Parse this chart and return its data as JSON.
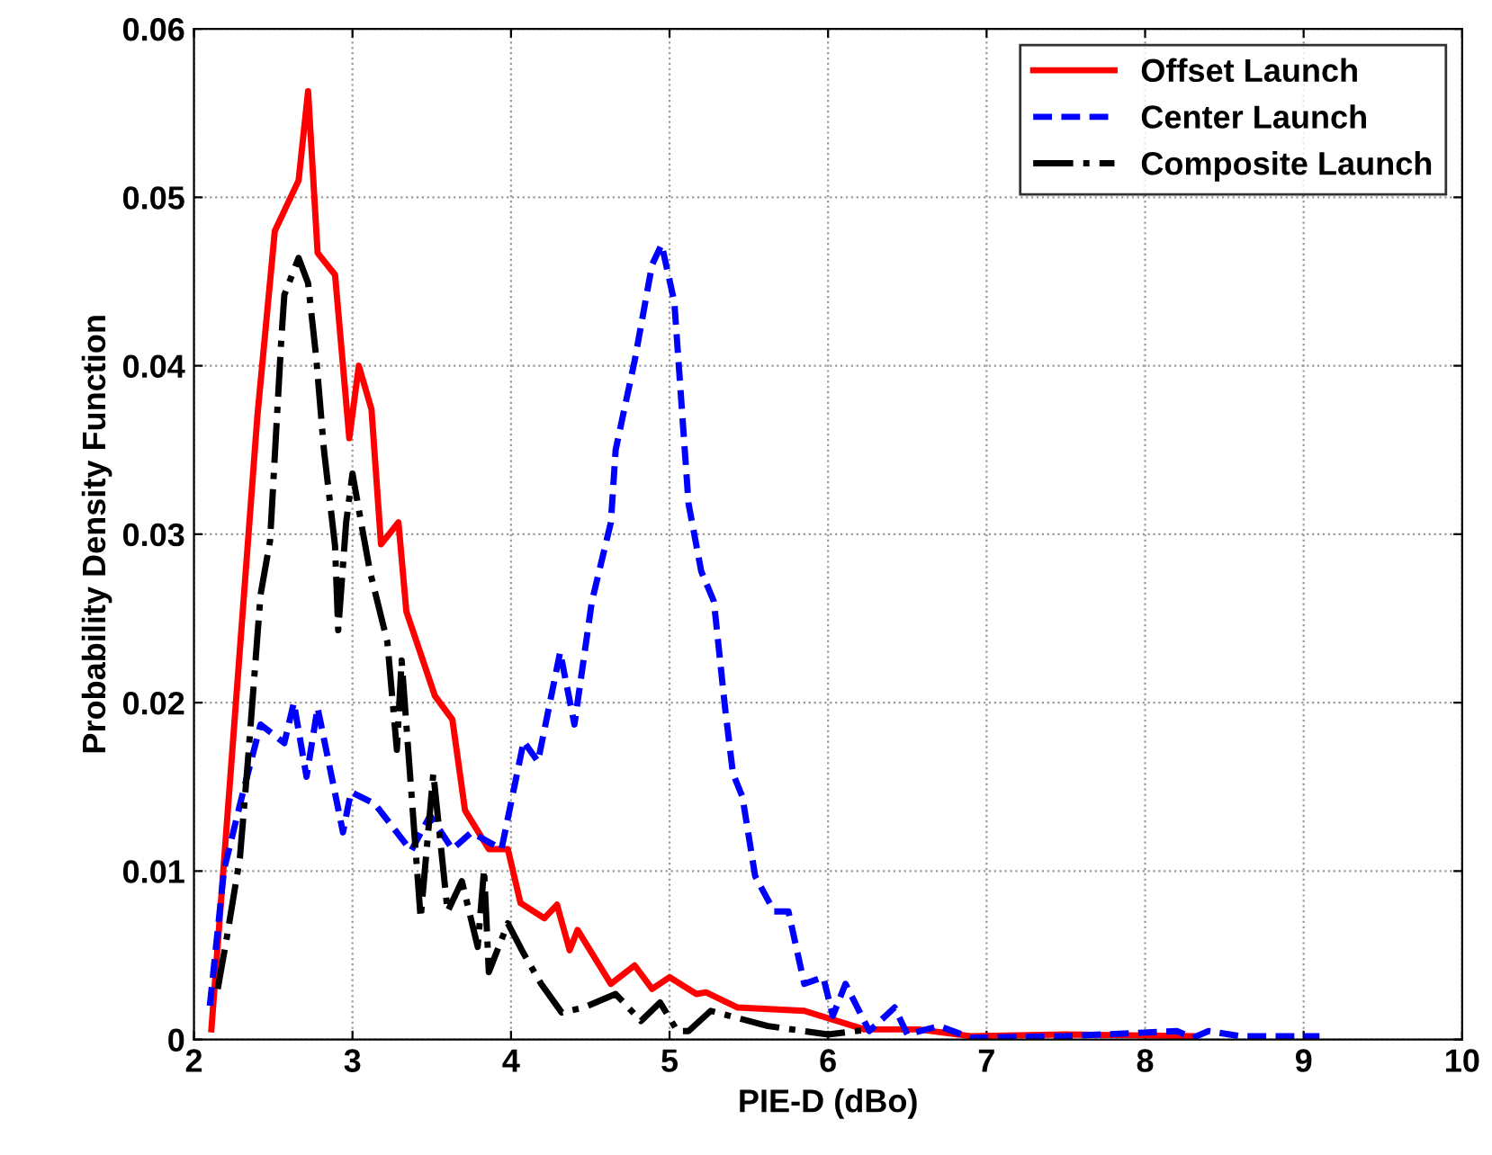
{
  "chart_data": {
    "type": "line",
    "xlabel": "PIE-D (dBo)",
    "ylabel": "Probability Density Function",
    "xlim": [
      2,
      10
    ],
    "ylim": [
      0,
      0.06
    ],
    "xticks": [
      2,
      3,
      4,
      5,
      6,
      7,
      8,
      9,
      10
    ],
    "yticks": [
      0,
      0.01,
      0.02,
      0.03,
      0.04,
      0.05,
      0.06
    ],
    "grid": true,
    "legend": "top right",
    "marker": "none",
    "series": [
      {
        "name": "Offset Launch",
        "color": "#ff0000",
        "line_style": "solid",
        "x": [
          2.11,
          2.4,
          2.51,
          2.66,
          2.72,
          2.78,
          2.89,
          2.98,
          3.04,
          3.12,
          3.18,
          3.29,
          3.34,
          3.52,
          3.63,
          3.71,
          3.86,
          3.98,
          4.06,
          4.21,
          4.29,
          4.37,
          4.42,
          4.63,
          4.78,
          4.89,
          5.0,
          5.17,
          5.23,
          5.43,
          5.85,
          6.23,
          6.57,
          6.9,
          7.5,
          8.3
        ],
        "values": [
          0.0006,
          0.037,
          0.048,
          0.051,
          0.0563,
          0.0467,
          0.0454,
          0.0357,
          0.04,
          0.0374,
          0.0294,
          0.0307,
          0.0254,
          0.0204,
          0.019,
          0.0136,
          0.0113,
          0.0113,
          0.0081,
          0.0072,
          0.008,
          0.0053,
          0.0065,
          0.0033,
          0.0044,
          0.003,
          0.0037,
          0.0027,
          0.0028,
          0.0019,
          0.0017,
          0.0006,
          0.0006,
          0.0002,
          0.0003,
          0.0002
        ]
      },
      {
        "name": "Center Launch",
        "color": "#0000ff",
        "line_style": "dashed",
        "x": [
          2.1,
          2.19,
          2.31,
          2.42,
          2.57,
          2.63,
          2.71,
          2.78,
          2.94,
          2.99,
          3.14,
          3.37,
          3.49,
          3.63,
          3.75,
          3.94,
          4.08,
          4.17,
          4.31,
          4.4,
          4.51,
          4.63,
          4.66,
          4.78,
          4.89,
          4.95,
          5.03,
          5.12,
          5.2,
          5.28,
          5.35,
          5.4,
          5.46,
          5.54,
          5.66,
          5.75,
          5.85,
          5.97,
          6.03,
          6.11,
          6.26,
          6.42,
          6.5,
          6.7,
          6.9,
          7.5,
          8.2,
          8.3,
          8.4,
          8.6,
          9.1
        ],
        "values": [
          0.002,
          0.0101,
          0.0147,
          0.0187,
          0.0176,
          0.02,
          0.0156,
          0.0197,
          0.0123,
          0.0147,
          0.014,
          0.0112,
          0.0133,
          0.0113,
          0.0123,
          0.0113,
          0.0177,
          0.0165,
          0.023,
          0.0187,
          0.026,
          0.0307,
          0.035,
          0.0403,
          0.046,
          0.0472,
          0.0438,
          0.0318,
          0.0278,
          0.026,
          0.0197,
          0.0158,
          0.0144,
          0.0097,
          0.0076,
          0.0076,
          0.0033,
          0.0037,
          0.0014,
          0.0033,
          0.0005,
          0.0019,
          0.0003,
          0.0008,
          0.0001,
          0.0002,
          0.0005,
          0.0001,
          0.0005,
          0.0002,
          0.0002
        ]
      },
      {
        "name": "Composite Launch",
        "color": "#000000",
        "line_style": "dashdot",
        "x": [
          2.15,
          2.21,
          2.29,
          2.34,
          2.42,
          2.48,
          2.55,
          2.57,
          2.66,
          2.72,
          2.77,
          2.82,
          2.89,
          2.91,
          2.96,
          3.0,
          3.06,
          3.11,
          3.22,
          3.28,
          3.31,
          3.43,
          3.51,
          3.6,
          3.69,
          3.79,
          3.83,
          3.86,
          3.98,
          4.08,
          4.19,
          4.32,
          4.46,
          4.66,
          4.82,
          4.94,
          5.05,
          5.12,
          5.26,
          5.62,
          6.0,
          6.26
        ],
        "values": [
          0.003,
          0.0062,
          0.0108,
          0.0165,
          0.0264,
          0.0296,
          0.0414,
          0.0442,
          0.0464,
          0.0449,
          0.0406,
          0.035,
          0.0293,
          0.0243,
          0.0307,
          0.0336,
          0.0304,
          0.0278,
          0.0236,
          0.0172,
          0.0225,
          0.0072,
          0.0158,
          0.0076,
          0.0094,
          0.0055,
          0.0101,
          0.004,
          0.0069,
          0.0051,
          0.0033,
          0.0016,
          0.0019,
          0.0027,
          0.0011,
          0.0022,
          0.0005,
          0.0005,
          0.0017,
          0.0008,
          0.0003,
          0.0006
        ]
      }
    ]
  }
}
